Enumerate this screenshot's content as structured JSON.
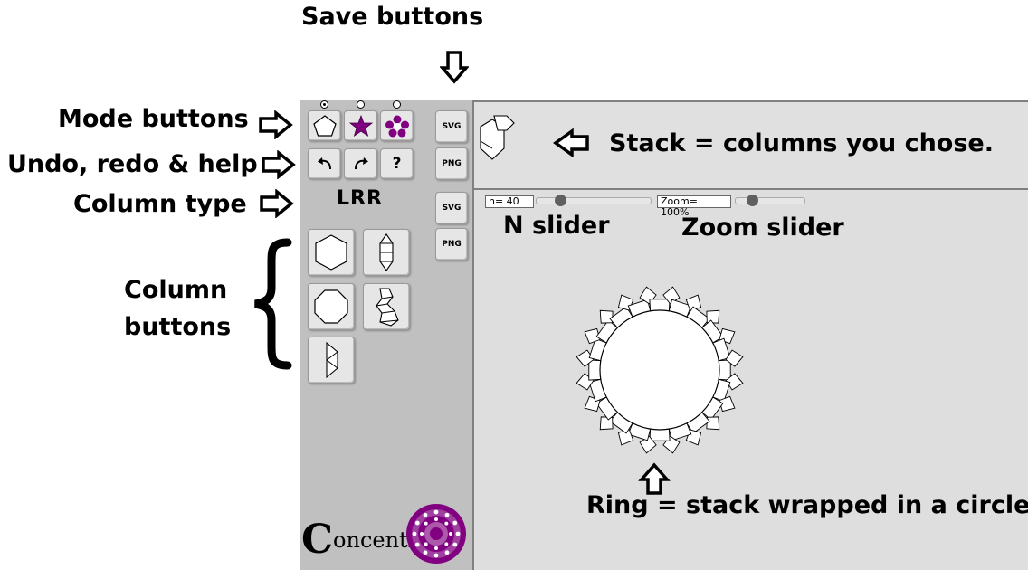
{
  "annotations": {
    "save_buttons": "Save buttons",
    "mode_buttons": "Mode buttons",
    "undo_redo_help": "Undo, redo & help",
    "column_type": "Column type",
    "column_buttons_line1": "Column",
    "column_buttons_line2": "buttons",
    "stack": "Stack = columns you chose.",
    "n_slider": "N slider",
    "zoom_slider": "Zoom slider",
    "ring": "Ring = stack wrapped in a circle"
  },
  "sidebar": {
    "column_type": "LRR",
    "help_label": "?",
    "save_top": {
      "svg": "SVG",
      "png": "PNG"
    },
    "save_bottom": {
      "svg": "SVG",
      "png": "PNG"
    },
    "modes": [
      "pentagon",
      "star",
      "flower"
    ],
    "selected_mode": 0,
    "logo": {
      "cap": "C",
      "rest": "oncentric"
    }
  },
  "controls": {
    "n_label": "n=  40",
    "n_value": 40,
    "zoom_label": "Zoom= 100%",
    "zoom_value": 100
  },
  "colors": {
    "accent_purple": "#800080",
    "panel": "#c0c0c0",
    "canvas": "#dedede"
  }
}
